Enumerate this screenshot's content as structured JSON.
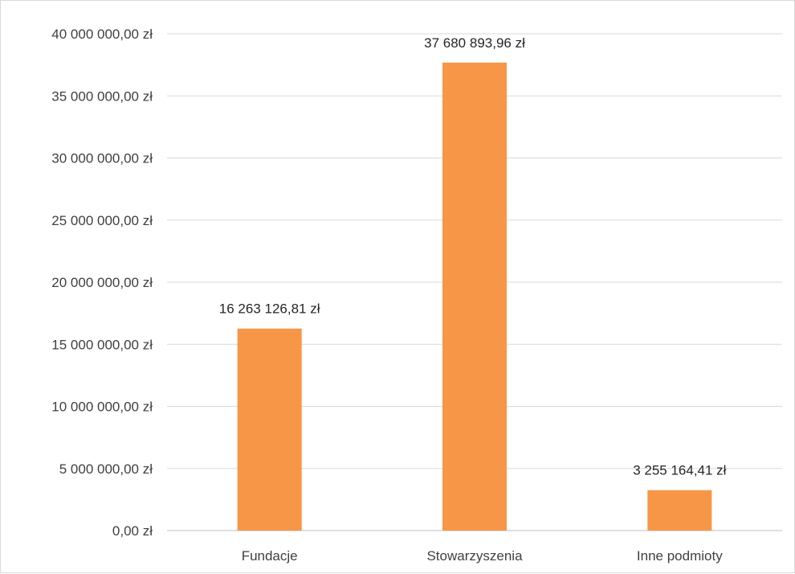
{
  "chart_data": {
    "type": "bar",
    "title": "",
    "xlabel": "",
    "ylabel": "",
    "categories": [
      "Fundacje",
      "Stowarzyszenia",
      "Inne podmioty"
    ],
    "values": [
      16263126.81,
      37680893.96,
      3255164.41
    ],
    "data_labels": [
      "16 263 126,81 zł",
      "37 680 893,96 zł",
      "3 255 164,41 zł"
    ],
    "ylim": [
      0,
      40000000
    ],
    "y_ticks": [
      0,
      5000000,
      10000000,
      15000000,
      20000000,
      25000000,
      30000000,
      35000000,
      40000000
    ],
    "y_tick_labels": [
      "0,00 zł",
      "5 000 000,00 zł",
      "10 000 000,00 zł",
      "15 000 000,00 zł",
      "20 000 000,00 zł",
      "25 000 000,00 zł",
      "30 000 000,00 zł",
      "35 000 000,00 zł",
      "40 000 000,00 zł"
    ],
    "grid": true,
    "legend": "none",
    "colors": {
      "bar": "#f79646",
      "grid": "#d9d9d9",
      "text": "#404040"
    }
  }
}
